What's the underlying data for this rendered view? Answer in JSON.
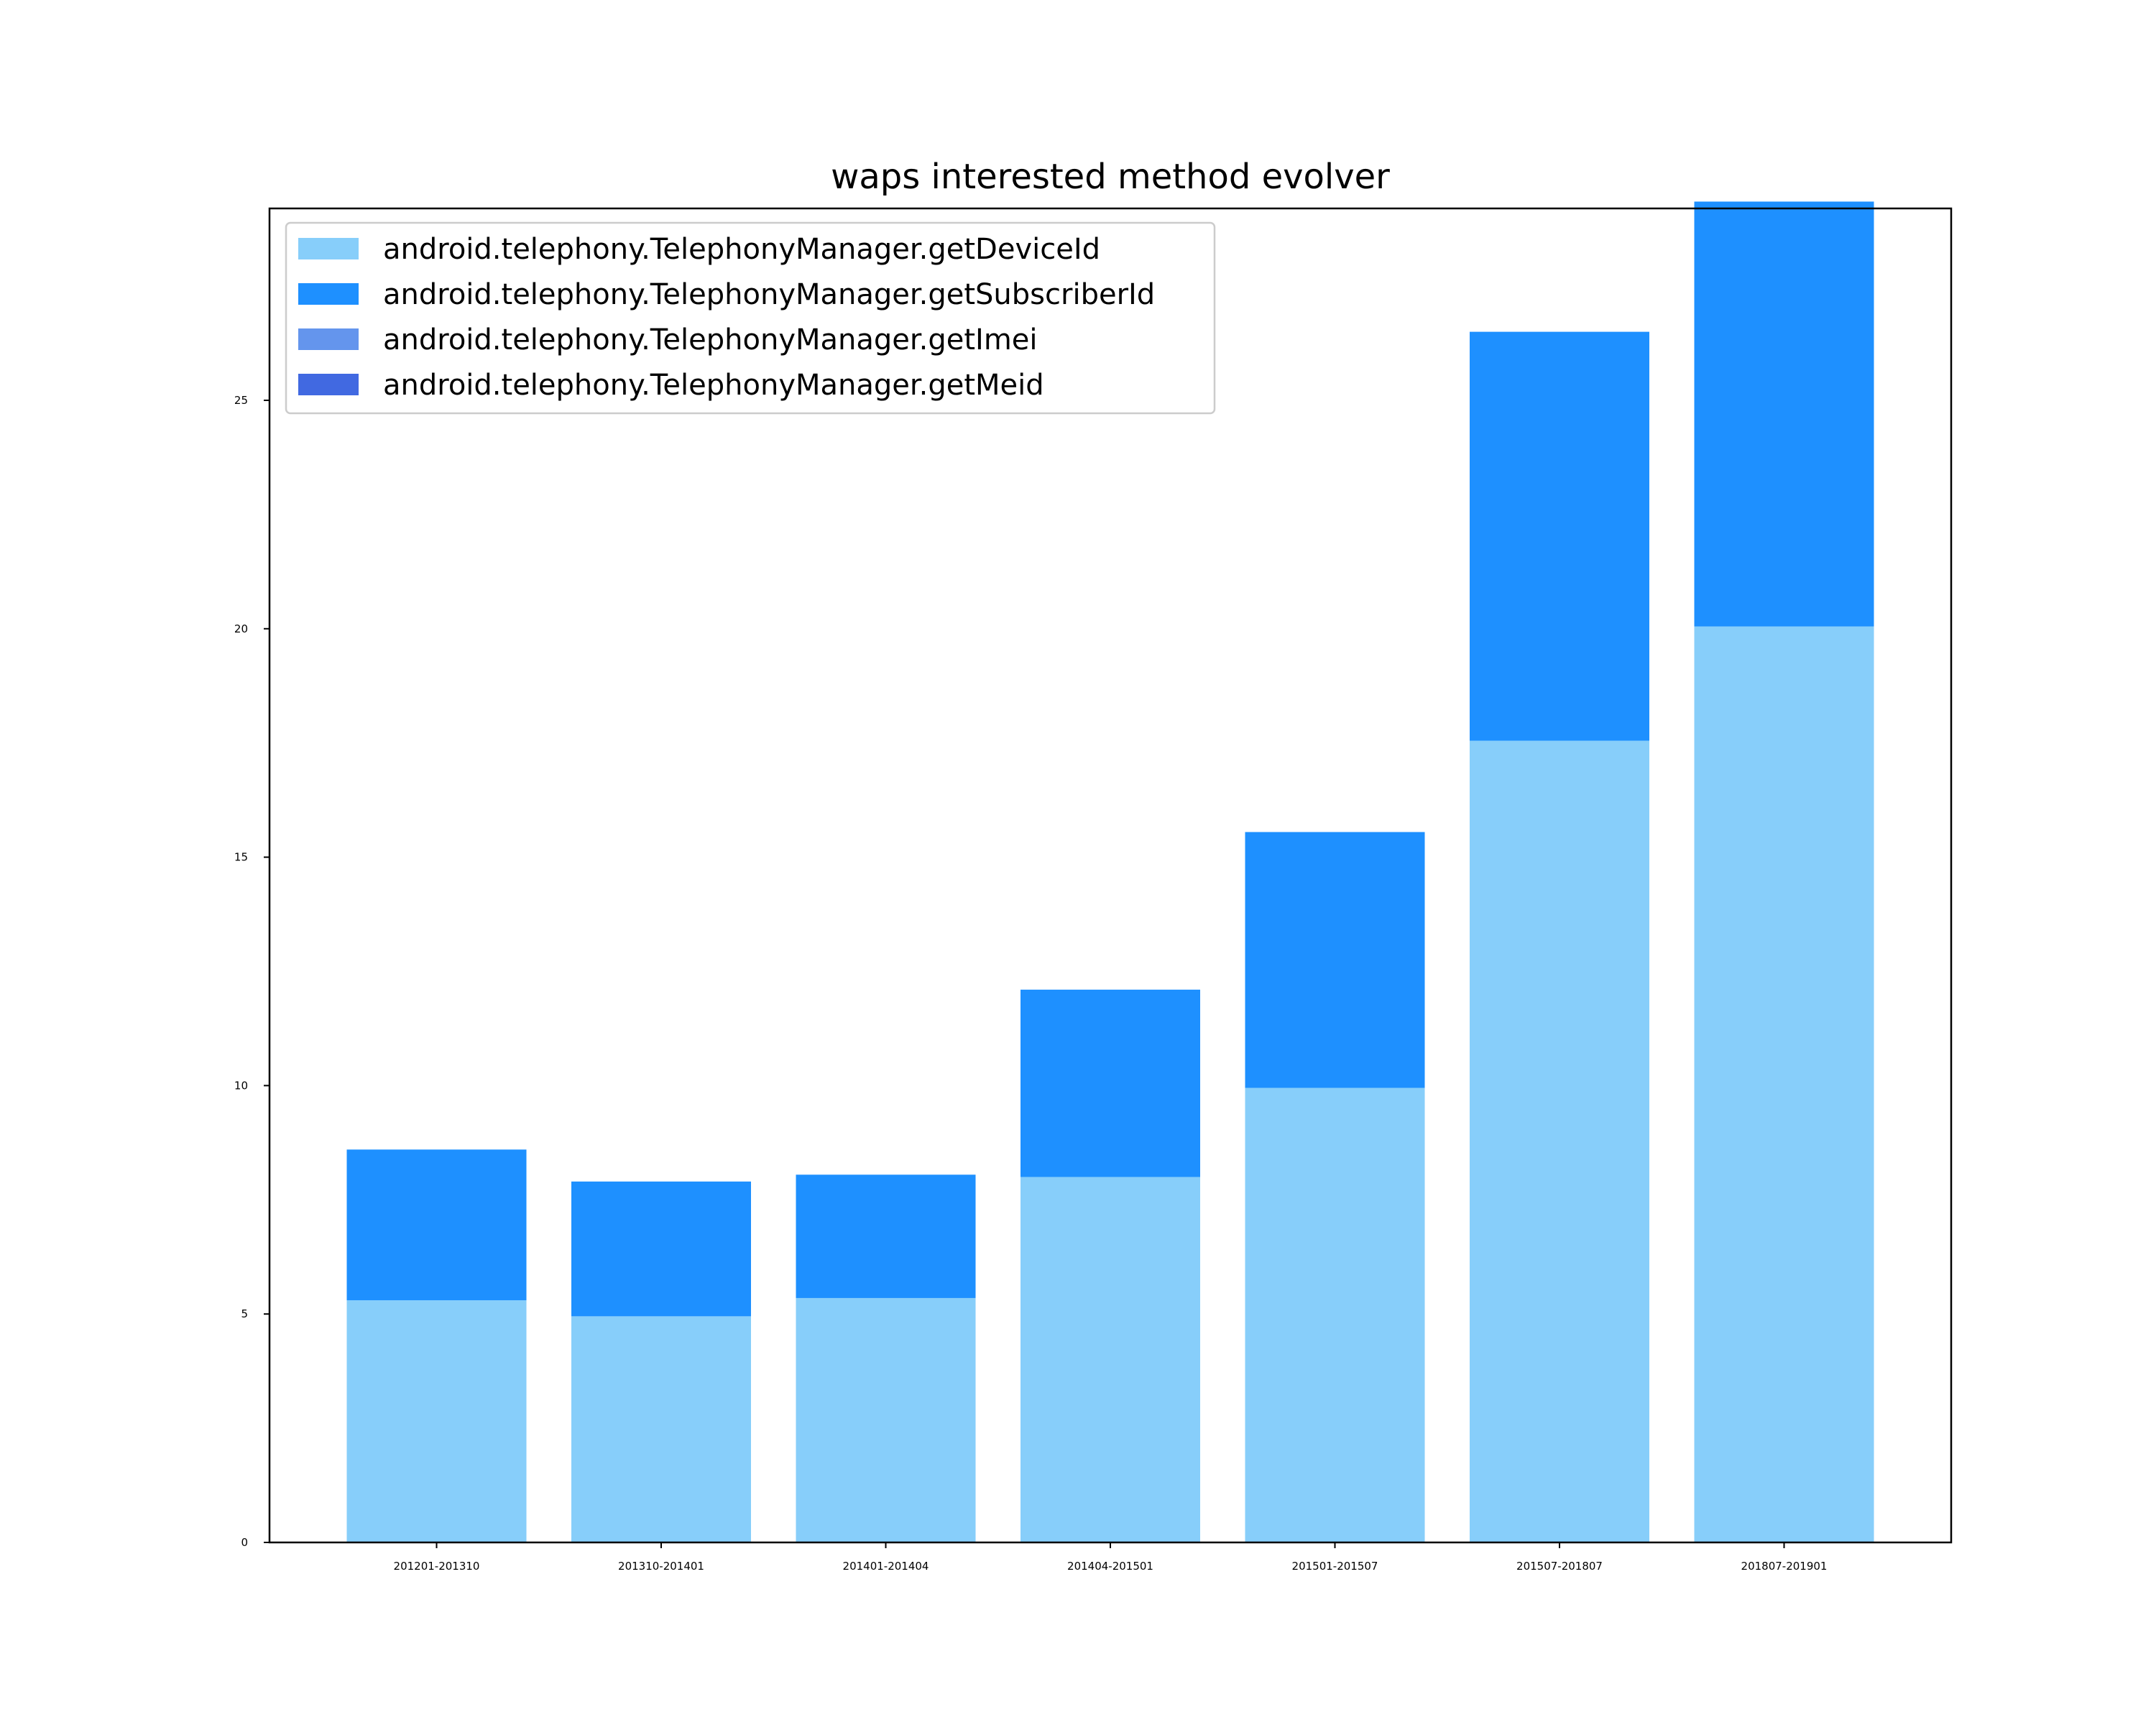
{
  "chart_data": {
    "type": "bar",
    "stacked": true,
    "title": "waps interested method evolver",
    "xlabel": "",
    "ylabel": "",
    "categories": [
      "201201-201310",
      "201310-201401",
      "201401-201404",
      "201404-201501",
      "201501-201507",
      "201507-201807",
      "201807-201901"
    ],
    "series": [
      {
        "name": "android.telephony.TelephonyManager.getDeviceId",
        "color": "#87CEFA",
        "values": [
          5.3,
          4.95,
          5.35,
          8.0,
          9.95,
          17.55,
          20.05
        ]
      },
      {
        "name": "android.telephony.TelephonyManager.getSubscriberId",
        "color": "#1E90FF",
        "values": [
          3.3,
          2.95,
          2.7,
          4.1,
          5.6,
          8.95,
          9.3
        ]
      },
      {
        "name": "android.telephony.TelephonyManager.getImei",
        "color": "#6495ED",
        "values": [
          0,
          0,
          0,
          0,
          0,
          0,
          0
        ]
      },
      {
        "name": "android.telephony.TelephonyManager.getMeid",
        "color": "#4169E1",
        "values": [
          0,
          0,
          0,
          0,
          0,
          0,
          0
        ]
      }
    ],
    "ylim": [
      0,
      29.2
    ],
    "yticks": [
      "0",
      "5",
      "10",
      "15",
      "20",
      "25"
    ],
    "grid": false,
    "legend_position": "upper-left"
  }
}
